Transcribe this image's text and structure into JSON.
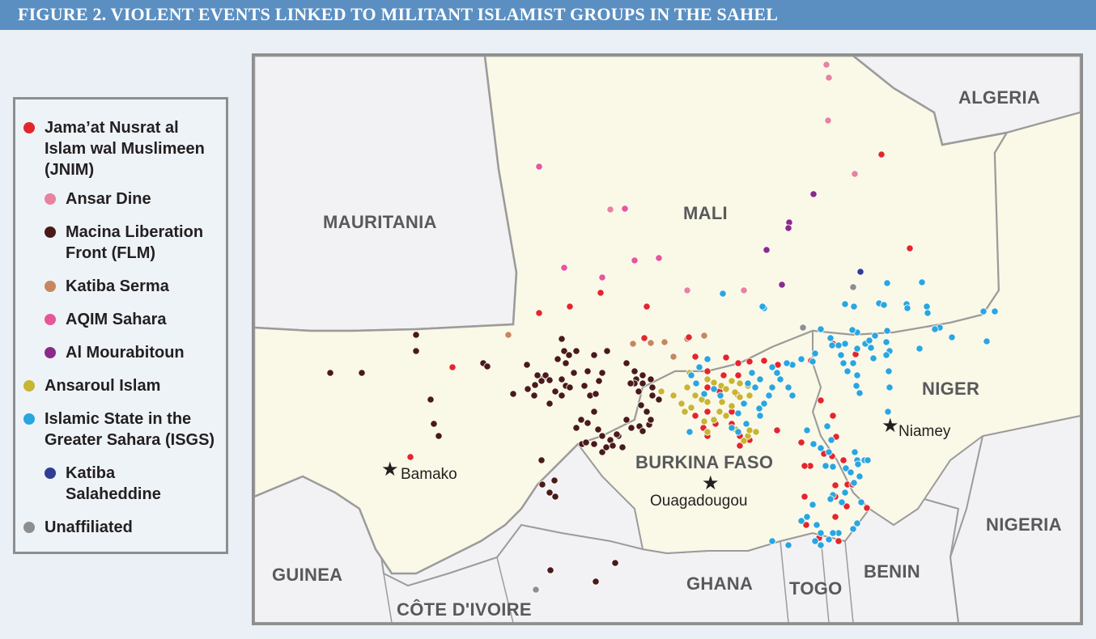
{
  "header": {
    "title": "FIGURE 2. VIOLENT EVENTS LINKED TO MILITANT ISLAMIST GROUPS IN THE SAHEL",
    "color": "#5b8fc1"
  },
  "legend": {
    "items": [
      {
        "label1": "Jama’at Nusrat al",
        "label2": "Islam wal Muslimeen",
        "label3": "(JNIM)",
        "color": "#e3262b"
      },
      {
        "label1": "Ansar Dine",
        "color": "#e8829f"
      },
      {
        "label1": "Macina Liberation",
        "label2": "Front (FLM)",
        "color": "#4a1a18"
      },
      {
        "label1": "Katiba Serma",
        "color": "#c6875f"
      },
      {
        "label1": "AQIM Sahara",
        "color": "#e8559a"
      },
      {
        "label1": "Al Mourabitoun",
        "color": "#8a2a8c"
      },
      {
        "label1": "Ansaroul Islam",
        "color": "#c8b531"
      },
      {
        "label1": "Islamic State in the",
        "label2": "Greater Sahara (ISGS)",
        "color": "#2aa6df"
      },
      {
        "label1": "Katiba",
        "label2": "Salaheddine",
        "color": "#2f3d94"
      },
      {
        "label1": "Unaffiliated",
        "color": "#8e8e8e"
      }
    ]
  },
  "map": {
    "land_color": "#faf8e6",
    "other_land_color": "#f2f2f4",
    "border_color": "#9b9b9b",
    "countries": {
      "mauritania": "MAURITANIA",
      "mali": "MALI",
      "algeria": "ALGERIA",
      "niger": "NIGER",
      "burkina": "BURKINA FASO",
      "nigeria": "NIGERIA",
      "guinea": "GUINEA",
      "ghana": "GHANA",
      "togo": "TOGO",
      "benin": "BENIN",
      "cote": "CÔTE D'IVOIRE"
    },
    "cities": {
      "bamako": "Bamako",
      "niamey": "Niamey",
      "ouagadougou": "Ouagadougou"
    }
  }
}
